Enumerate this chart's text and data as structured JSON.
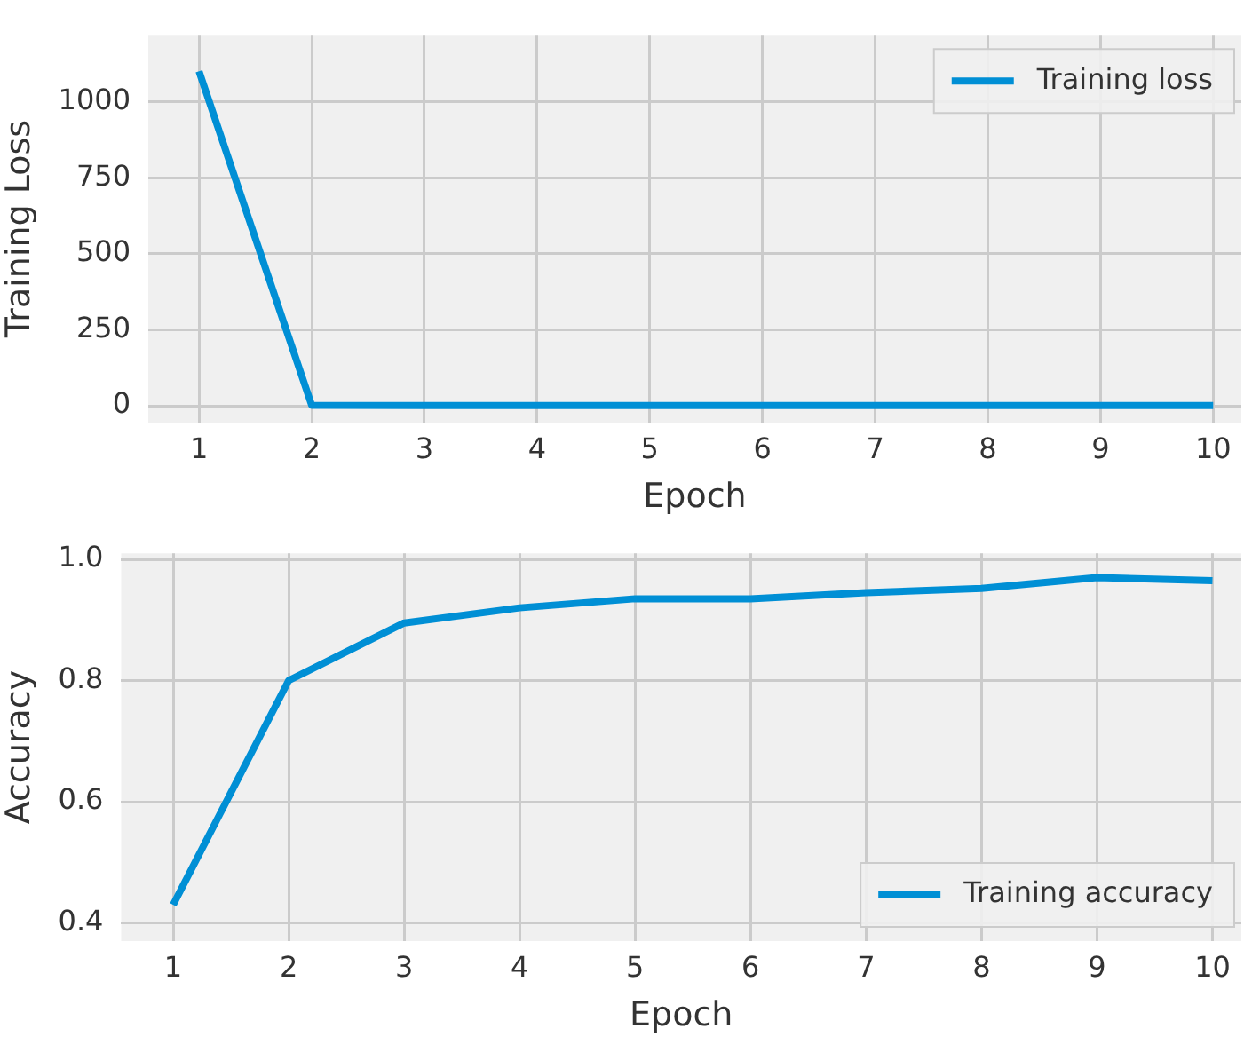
{
  "chart_data": [
    {
      "type": "line",
      "xlabel": "Epoch",
      "ylabel": "Training Loss",
      "x": [
        1,
        2,
        3,
        4,
        5,
        6,
        7,
        8,
        9,
        10
      ],
      "xlim": [
        0.55,
        10.25
      ],
      "xticks": [
        1,
        2,
        3,
        4,
        5,
        6,
        7,
        8,
        9,
        10
      ],
      "ylim": [
        -55,
        1220
      ],
      "yticks": [
        0,
        250,
        500,
        750,
        1000
      ],
      "grid": true,
      "legend": "top right",
      "series": [
        {
          "name": "Training loss",
          "color": "#008fd5",
          "values": [
            1100,
            2,
            1,
            1,
            1,
            1,
            1,
            1,
            1,
            1
          ]
        }
      ]
    },
    {
      "type": "line",
      "xlabel": "Epoch",
      "ylabel": "Accuracy",
      "x": [
        1,
        2,
        3,
        4,
        5,
        6,
        7,
        8,
        9,
        10
      ],
      "xlim": [
        0.55,
        10.25
      ],
      "xticks": [
        1,
        2,
        3,
        4,
        5,
        6,
        7,
        8,
        9,
        10
      ],
      "ylim": [
        0.37,
        1.01
      ],
      "yticks": [
        0.4,
        0.6,
        0.8,
        {
          "value": 1,
          "label": "1.0"
        }
      ],
      "grid": true,
      "legend": "bottom right",
      "series": [
        {
          "name": "Training accuracy",
          "color": "#008fd5",
          "values": [
            0.43,
            0.8,
            0.895,
            0.92,
            0.935,
            0.935,
            0.945,
            0.952,
            0.97,
            0.965
          ]
        }
      ]
    }
  ]
}
